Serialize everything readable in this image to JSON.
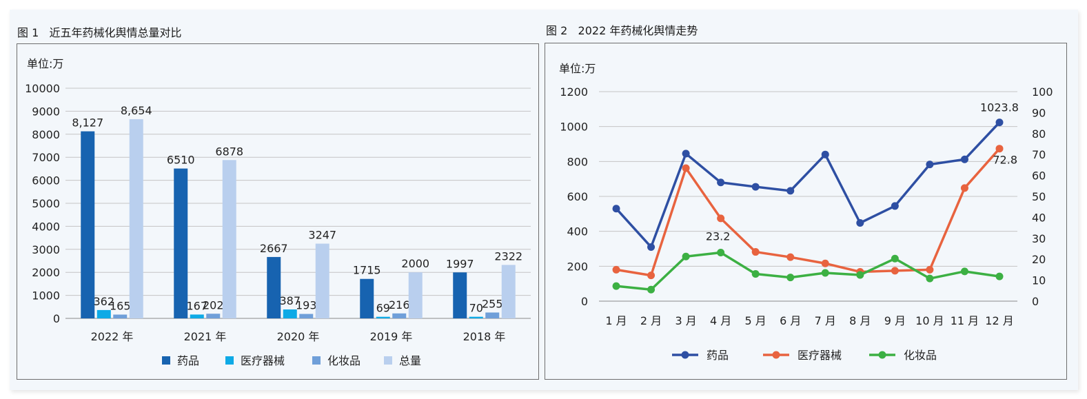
{
  "figures": [
    {
      "title": "图 1   近五年药械化舆情总量对比",
      "unit": "单位:万"
    },
    {
      "title": "图 2   2022 年药械化舆情走势",
      "unit": "单位:万"
    }
  ],
  "chart_data": [
    {
      "type": "bar",
      "categories": [
        "2022 年",
        "2021 年",
        "2020 年",
        "2019 年",
        "2018 年"
      ],
      "ylim": [
        0,
        10000
      ],
      "yticks": [
        0,
        1000,
        2000,
        3000,
        4000,
        5000,
        6000,
        7000,
        8000,
        9000,
        10000
      ],
      "grid": true,
      "legend_position": "bottom",
      "series": [
        {
          "name": "药品",
          "values": [
            8127,
            6510,
            2667,
            1715,
            1997
          ],
          "labels": [
            "8,127",
            "6510",
            "2667",
            "1715",
            "1997"
          ],
          "color": "#1763b0"
        },
        {
          "name": "医疗器械",
          "values": [
            362,
            167,
            387,
            69,
            70
          ],
          "labels": [
            "362",
            "167",
            "387",
            "69",
            "70"
          ],
          "color": "#0eaae6"
        },
        {
          "name": "化妆品",
          "values": [
            165,
            202,
            193,
            216,
            255
          ],
          "labels": [
            "165",
            "202",
            "193",
            "216",
            "255"
          ],
          "color": "#6f9fd9"
        },
        {
          "name": "总量",
          "values": [
            8654,
            6878,
            3247,
            2000,
            2322
          ],
          "labels": [
            "8,654",
            "6878",
            "3247",
            "2000",
            "2322"
          ],
          "color": "#b9cfee"
        }
      ]
    },
    {
      "type": "line",
      "categories": [
        "1 月",
        "2 月",
        "3 月",
        "4 月",
        "5 月",
        "6 月",
        "7 月",
        "8 月",
        "9 月",
        "10 月",
        "11 月",
        "12 月"
      ],
      "ylim": [
        0,
        1200
      ],
      "yticks": [
        0,
        200,
        400,
        600,
        800,
        1000,
        1200
      ],
      "y2lim": [
        0,
        100
      ],
      "y2ticks": [
        0,
        10,
        20,
        30,
        40,
        50,
        60,
        70,
        80,
        90,
        100
      ],
      "grid": true,
      "legend_position": "bottom",
      "series": [
        {
          "name": "药品",
          "axis": "left",
          "values": [
            530,
            310,
            845,
            680,
            655,
            632,
            840,
            448,
            545,
            783,
            812,
            1023.8
          ],
          "color": "#2e4fa3"
        },
        {
          "name": "医疗器械",
          "axis": "right",
          "values": [
            15,
            12.3,
            63.5,
            39.5,
            23.5,
            21,
            18,
            14,
            14.5,
            15,
            54,
            72.8
          ],
          "color": "#e8633f"
        },
        {
          "name": "化妆品",
          "axis": "right",
          "values": [
            7.2,
            5.5,
            21.3,
            23.2,
            13,
            11.3,
            13.5,
            12.5,
            20.3,
            10.8,
            14.2,
            11.8
          ],
          "color": "#3cb043"
        }
      ],
      "annotations": [
        {
          "series": "药品",
          "index": 11,
          "text": "1023.8"
        },
        {
          "series": "医疗器械",
          "index": 11,
          "text": "72.8"
        },
        {
          "series": "化妆品",
          "index": 3,
          "text": "23.2"
        }
      ]
    }
  ]
}
